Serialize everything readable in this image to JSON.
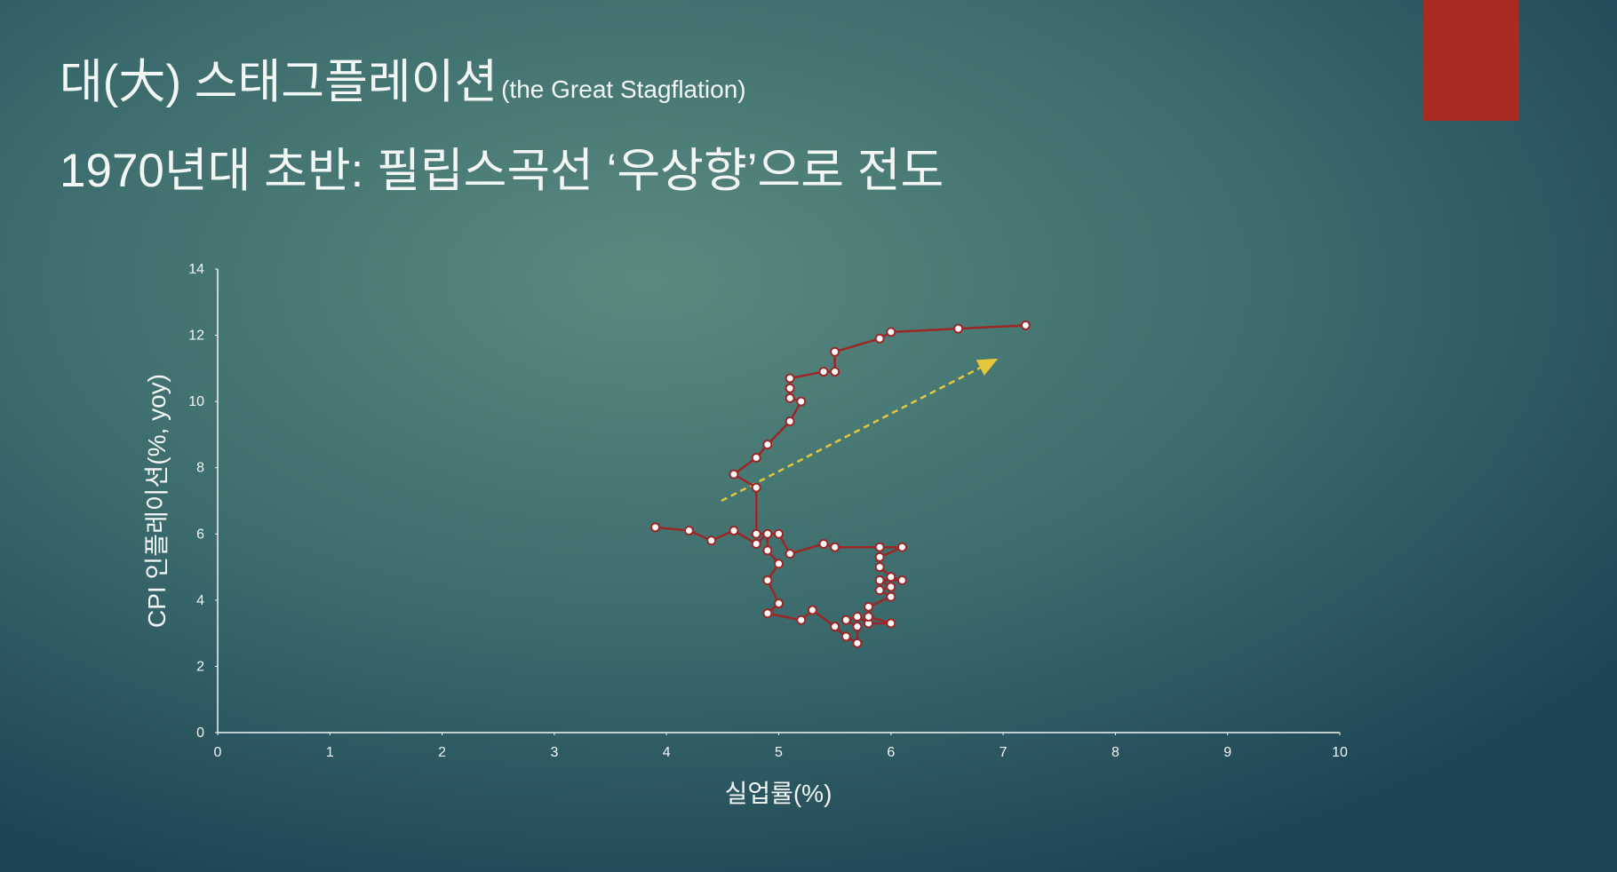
{
  "title": "대(大) 스태그플레이션",
  "title_note": "(the Great Stagflation)",
  "subtitle": "1970년대 초반: 필립스곡선 ‘우상향’으로 전도",
  "chart_data": {
    "type": "line",
    "x_label": "실업률(%)",
    "y_label": "CPI 인플레이션(%, yoy)",
    "x": [
      3.9,
      4.2,
      4.4,
      4.6,
      4.8,
      4.9,
      4.9,
      5.0,
      4.9,
      5.0,
      4.9,
      5.2,
      5.3,
      5.5,
      5.6,
      5.7,
      5.7,
      5.6,
      5.7,
      5.8,
      6.0,
      5.8,
      5.8,
      6.0,
      5.9,
      6.0,
      5.9,
      6.1,
      6.0,
      5.9,
      5.9,
      6.1,
      5.9,
      5.5,
      5.4,
      5.1,
      5.0,
      4.8,
      4.8,
      4.6,
      4.8,
      4.9,
      5.1,
      5.2,
      5.1,
      5.1,
      5.1,
      5.4,
      5.5,
      5.5,
      5.9,
      6.0,
      6.6,
      7.2
    ],
    "series": [
      {
        "color": "#9c2727",
        "values": [
          6.2,
          6.1,
          5.8,
          6.1,
          5.7,
          6.0,
          5.5,
          5.1,
          4.6,
          3.9,
          3.6,
          3.4,
          3.7,
          3.2,
          2.9,
          2.7,
          3.2,
          3.4,
          3.5,
          3.3,
          3.3,
          3.5,
          3.8,
          4.1,
          4.3,
          4.4,
          4.6,
          4.6,
          4.7,
          5.0,
          5.3,
          5.6,
          5.6,
          5.6,
          5.7,
          5.4,
          6.0,
          6.0,
          7.4,
          7.8,
          8.3,
          8.7,
          9.4,
          10.0,
          10.1,
          10.4,
          10.7,
          10.9,
          10.9,
          11.5,
          11.9,
          12.1,
          12.2,
          12.3
        ]
      }
    ],
    "xlim": [
      0,
      10
    ],
    "xticks": [
      0,
      1,
      2,
      3,
      4,
      5,
      6,
      7,
      8,
      9,
      10
    ],
    "ylim": [
      0,
      14
    ],
    "yticks": [
      0,
      2,
      4,
      6,
      8,
      10,
      12,
      14
    ],
    "grid": false
  }
}
